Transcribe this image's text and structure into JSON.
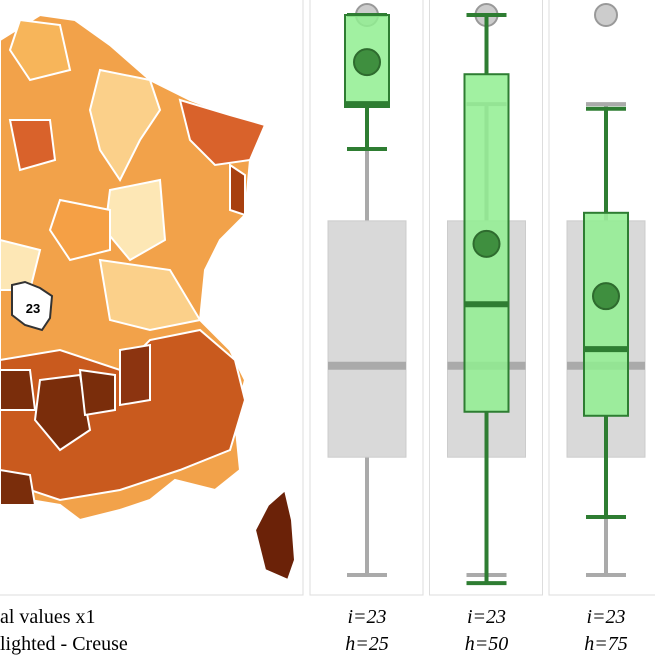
{
  "map": {
    "highlight_label": "23"
  },
  "captions": {
    "line1": "al values x1",
    "line2": "lighted - Creuse"
  },
  "chart_data": {
    "type": "box",
    "ylim": [
      0,
      100
    ],
    "reference": {
      "color": "#d9d9d9",
      "median_color": "#aaaaaa",
      "min": 2.6,
      "q1": 23.1,
      "median": 39.0,
      "q3": 64.2,
      "max": 84.5,
      "outliers": [
        100
      ]
    },
    "series": [
      {
        "color": "#90ee90",
        "line_color": "#2e7d32",
        "label_i": "i=23",
        "label_h": "h=25",
        "min": 76.7,
        "q1": 84.0,
        "median": 84.5,
        "q3": 100,
        "max": 100,
        "mean": 91.8
      },
      {
        "color": "#90ee90",
        "line_color": "#2e7d32",
        "label_i": "i=23",
        "label_h": "h=50",
        "min": 1.2,
        "q1": 31.0,
        "median": 49.7,
        "q3": 89.7,
        "max": 100,
        "mean": 60.2
      },
      {
        "color": "#90ee90",
        "line_color": "#2e7d32",
        "label_i": "i=23",
        "label_h": "h=75",
        "min": 12.7,
        "q1": 30.3,
        "median": 41.9,
        "q3": 65.6,
        "max": 83.7,
        "mean": 51.1
      }
    ]
  }
}
